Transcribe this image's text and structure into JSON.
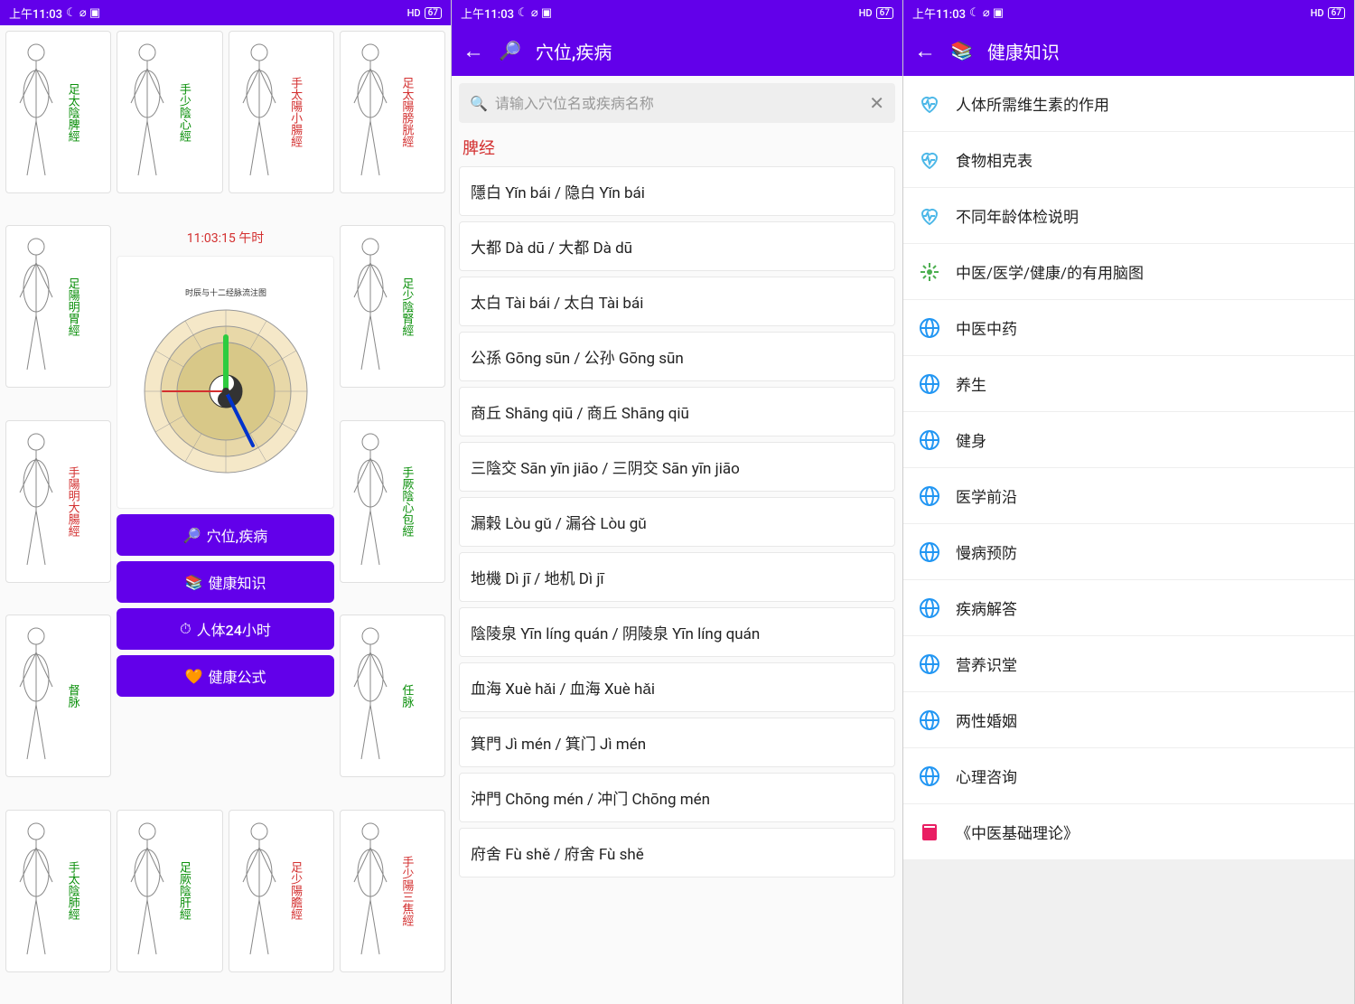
{
  "status": {
    "time": "上午11:03",
    "icons_left": "☾ ⌀ ▣",
    "hd": "HD",
    "battery": "67"
  },
  "colors": {
    "primary": "#6200ea",
    "red": "#d32f2f",
    "green": "#0a8f0a",
    "heart": "#4db8e8",
    "globe": "#2196f3",
    "star": "#4caf50",
    "book": "#e91e63"
  },
  "screen1": {
    "clock_time": "11:03:15  午时",
    "clock_title": "时辰与十二经脉流注图",
    "meridians": [
      {
        "label": "足太陰脾經",
        "color": "green"
      },
      {
        "label": "手少陰心經",
        "color": "green"
      },
      {
        "label": "手太陽小腸經",
        "color": "red"
      },
      {
        "label": "足太陽膀胱經",
        "color": "red"
      },
      {
        "label": "足陽明胃經",
        "color": "green"
      },
      {
        "label": "足少陰腎經",
        "color": "green"
      },
      {
        "label": "手陽明大腸經",
        "color": "red"
      },
      {
        "label": "手厥陰心包經",
        "color": "green"
      },
      {
        "label": "督脉",
        "color": "green"
      },
      {
        "label": "任脉",
        "color": "green"
      },
      {
        "label": "手太陰肺經",
        "color": "green"
      },
      {
        "label": "足厥陰肝經",
        "color": "green"
      },
      {
        "label": "足少陽膽經",
        "color": "red"
      },
      {
        "label": "手少陽三焦經",
        "color": "red"
      }
    ],
    "buttons": [
      {
        "icon": "🔎",
        "label": "穴位,疾病"
      },
      {
        "icon": "📚",
        "label": "健康知识"
      },
      {
        "icon": "⏱",
        "label": "人体24小时"
      },
      {
        "icon": "🧡",
        "label": "健康公式"
      }
    ]
  },
  "screen2": {
    "title_icon": "🔎",
    "title": "穴位,疾病",
    "placeholder": "请输入穴位名或疾病名称",
    "section": "脾经",
    "items": [
      "隱白 Yǐn bái / 隐白 Yǐn bái",
      "大都 Dà dū / 大都 Dà dū",
      "太白 Tài bái / 太白 Tài bái",
      "公孫 Gōng sūn / 公孙 Gōng sūn",
      "商丘 Shāng qiū / 商丘 Shāng qiū",
      "三陰交 Sān yīn jiāo / 三阴交 Sān yīn jiāo",
      "漏榖 Lòu gǔ / 漏谷 Lòu gǔ",
      "地機 Dì jī / 地机 Dì jī",
      "陰陵泉 Yīn líng quán / 阴陵泉 Yīn líng quán",
      "血海 Xuè hǎi / 血海 Xuè hǎi",
      "箕門 Jì mén / 箕门 Jì mén",
      "沖門 Chōng mén / 冲门 Chōng mén",
      "府舍 Fù shě / 府舍 Fù shě"
    ]
  },
  "screen3": {
    "title_icon": "📚",
    "title": "健康知识",
    "items": [
      {
        "icon": "heart",
        "label": "人体所需维生素的作用"
      },
      {
        "icon": "heart",
        "label": "食物相克表"
      },
      {
        "icon": "heart",
        "label": "不同年龄体检说明"
      },
      {
        "icon": "star",
        "label": "中医/医学/健康/的有用脑图"
      },
      {
        "icon": "globe",
        "label": "中医中药"
      },
      {
        "icon": "globe",
        "label": "养生"
      },
      {
        "icon": "globe",
        "label": "健身"
      },
      {
        "icon": "globe",
        "label": "医学前沿"
      },
      {
        "icon": "globe",
        "label": "慢病预防"
      },
      {
        "icon": "globe",
        "label": "疾病解答"
      },
      {
        "icon": "globe",
        "label": "营养识堂"
      },
      {
        "icon": "globe",
        "label": "两性婚姻"
      },
      {
        "icon": "globe",
        "label": "心理咨询"
      },
      {
        "icon": "book",
        "label": "《中医基础理论》"
      }
    ]
  }
}
